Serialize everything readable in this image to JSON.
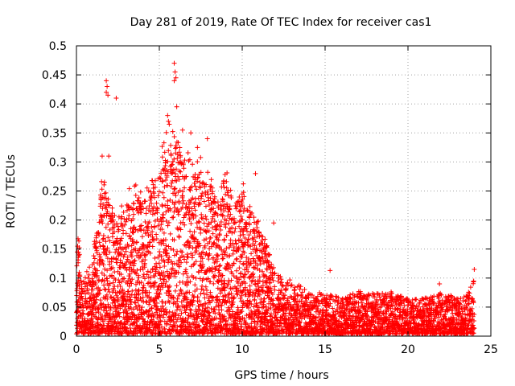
{
  "chart_data": {
    "type": "scatter",
    "title": "Day 281 of 2019, Rate Of TEC Index for receiver cas1",
    "xlabel": "GPS time / hours",
    "ylabel": "ROTI / TECUs",
    "xlim": [
      0,
      25
    ],
    "ylim": [
      0,
      0.5
    ],
    "x_ticks": [
      0,
      5,
      10,
      15,
      20,
      25
    ],
    "y_ticks": [
      0,
      0.05,
      0.1,
      0.15,
      0.2,
      0.25,
      0.3,
      0.35,
      0.4,
      0.45,
      0.5
    ],
    "x_tick_labels": [
      "0",
      "5",
      "10",
      "15",
      "20",
      "25"
    ],
    "y_tick_labels": [
      "0",
      "0.05",
      "0.1",
      "0.15",
      "0.2",
      "0.25",
      "0.3",
      "0.35",
      "0.4",
      "0.45",
      "0.5"
    ],
    "grid": true,
    "marker": "plus",
    "color": "#ff0000",
    "envelope": [
      [
        0.0,
        0.09
      ],
      [
        0.1,
        0.19
      ],
      [
        0.3,
        0.08
      ],
      [
        0.5,
        0.1
      ],
      [
        0.8,
        0.12
      ],
      [
        1.0,
        0.15
      ],
      [
        1.3,
        0.18
      ],
      [
        1.6,
        0.3
      ],
      [
        1.8,
        0.25
      ],
      [
        2.1,
        0.22
      ],
      [
        2.5,
        0.2
      ],
      [
        3.0,
        0.22
      ],
      [
        3.5,
        0.26
      ],
      [
        4.0,
        0.24
      ],
      [
        4.5,
        0.27
      ],
      [
        5.0,
        0.29
      ],
      [
        5.5,
        0.33
      ],
      [
        6.0,
        0.35
      ],
      [
        6.5,
        0.31
      ],
      [
        7.0,
        0.27
      ],
      [
        7.5,
        0.28
      ],
      [
        8.0,
        0.26
      ],
      [
        8.5,
        0.24
      ],
      [
        9.0,
        0.27
      ],
      [
        9.5,
        0.22
      ],
      [
        10.0,
        0.25
      ],
      [
        10.5,
        0.22
      ],
      [
        11.0,
        0.18
      ],
      [
        11.5,
        0.15
      ],
      [
        12.0,
        0.11
      ],
      [
        12.5,
        0.09
      ],
      [
        13.0,
        0.09
      ],
      [
        14.0,
        0.07
      ],
      [
        15.0,
        0.07
      ],
      [
        16.0,
        0.06
      ],
      [
        17.0,
        0.07
      ],
      [
        18.0,
        0.07
      ],
      [
        19.0,
        0.07
      ],
      [
        20.0,
        0.06
      ],
      [
        21.0,
        0.06
      ],
      [
        22.0,
        0.07
      ],
      [
        23.0,
        0.06
      ],
      [
        23.6,
        0.07
      ],
      [
        24.0,
        0.1
      ]
    ],
    "outliers": [
      [
        1.8,
        0.44
      ],
      [
        1.85,
        0.43
      ],
      [
        1.8,
        0.42
      ],
      [
        1.9,
        0.415
      ],
      [
        2.4,
        0.41
      ],
      [
        5.9,
        0.47
      ],
      [
        5.95,
        0.455
      ],
      [
        6.0,
        0.445
      ],
      [
        5.9,
        0.44
      ],
      [
        6.05,
        0.395
      ],
      [
        5.5,
        0.38
      ],
      [
        5.55,
        0.37
      ],
      [
        5.6,
        0.365
      ],
      [
        6.4,
        0.355
      ],
      [
        6.9,
        0.35
      ],
      [
        7.9,
        0.34
      ],
      [
        1.55,
        0.31
      ],
      [
        1.95,
        0.31
      ],
      [
        7.3,
        0.325
      ],
      [
        6.3,
        0.3
      ],
      [
        10.8,
        0.28
      ],
      [
        11.9,
        0.195
      ],
      [
        15.3,
        0.113
      ],
      [
        21.9,
        0.09
      ],
      [
        24.0,
        0.115
      ]
    ]
  }
}
